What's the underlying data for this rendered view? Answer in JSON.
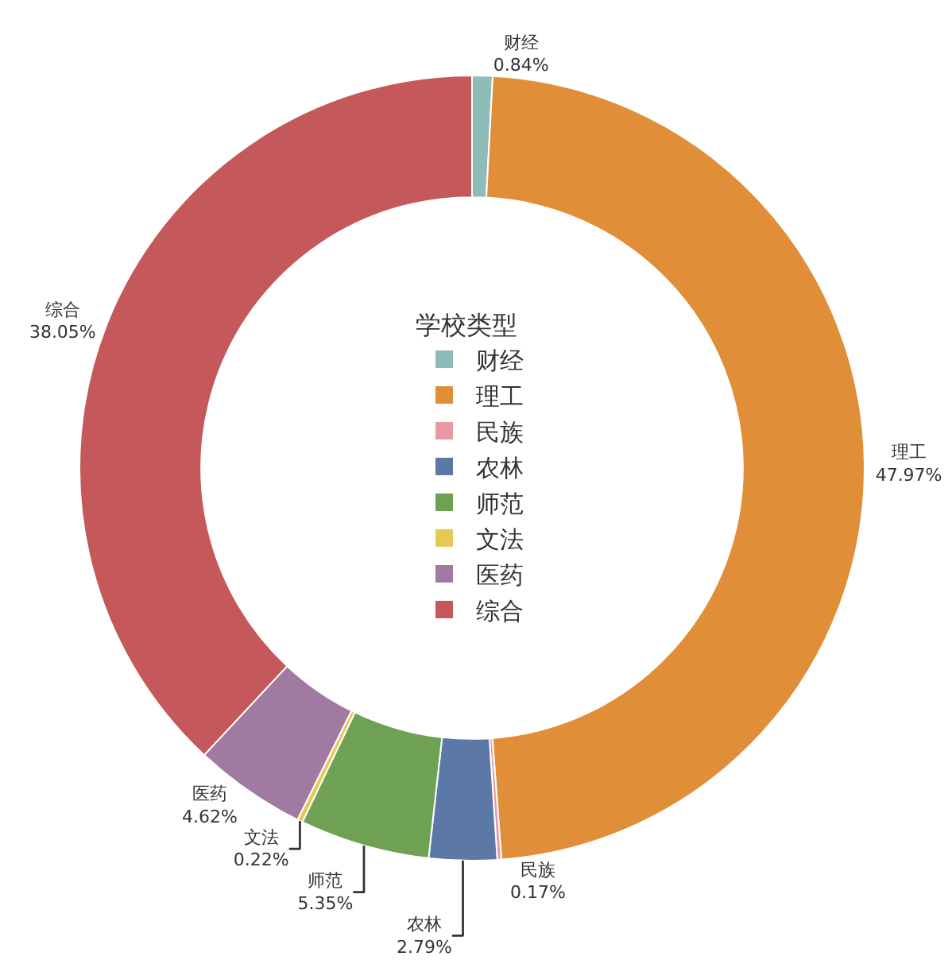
{
  "chart_data": {
    "type": "donut",
    "legend_title": "学校类型",
    "categories": [
      "财经",
      "理工",
      "民族",
      "农林",
      "师范",
      "文法",
      "医药",
      "综合"
    ],
    "values": [
      0.84,
      47.97,
      0.17,
      2.79,
      5.35,
      0.22,
      4.62,
      38.05
    ],
    "value_labels": [
      "0.84%",
      "47.97%",
      "0.17%",
      "2.79%",
      "5.35%",
      "0.22%",
      "4.62%",
      "38.05%"
    ],
    "colors": [
      "#8fbcb9",
      "#e08e37",
      "#e89aa4",
      "#5b78a6",
      "#6fa154",
      "#e6c954",
      "#a07aa0",
      "#c4585a"
    ],
    "legend": "center"
  }
}
